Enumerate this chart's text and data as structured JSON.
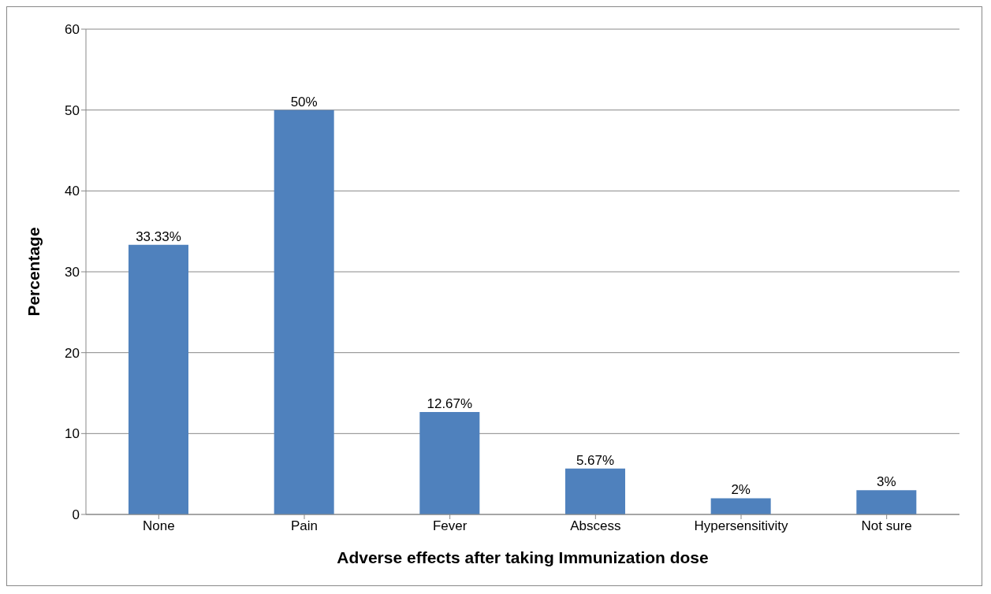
{
  "chart_data": {
    "type": "bar",
    "xlabel": "Adverse effects after taking Immunization dose",
    "ylabel": "Percentage",
    "categories": [
      "None",
      "Pain",
      "Fever",
      "Abscess",
      "Hypersensitivity",
      "Not sure"
    ],
    "values": [
      33.33,
      50,
      12.67,
      5.67,
      2,
      3
    ],
    "value_labels": [
      "33.33%",
      "50%",
      "12.67%",
      "5.67%",
      "2%",
      "3%"
    ],
    "color": "#4f81bd",
    "ylim": [
      0,
      60
    ],
    "yticks": [
      0,
      10,
      20,
      30,
      40,
      50,
      60
    ],
    "grid": "y"
  }
}
